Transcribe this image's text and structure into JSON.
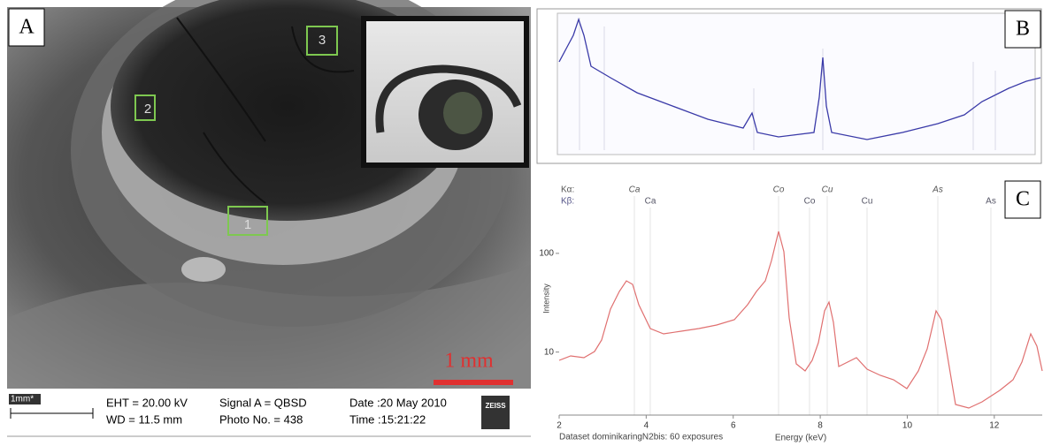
{
  "panel_a": {
    "label": "A",
    "regions": [
      "1",
      "2",
      "3"
    ],
    "scale_bar": "1 mm",
    "info": {
      "scale": "1mm*",
      "eht": "EHT = 20.00 kV",
      "wd": "WD = 11.5 mm",
      "signal": "Signal A = QBSD",
      "photo": "Photo No. = 438",
      "date": "Date :20 May 2010",
      "time": "Time :15:21:22",
      "logo": "ZEISS"
    }
  },
  "panel_b": {
    "label": "B"
  },
  "panel_c": {
    "label": "C",
    "line_key": [
      "Kα:",
      "Kβ:"
    ],
    "peaks_alpha": [
      "Ca",
      "Co",
      "Cu",
      "As"
    ],
    "peaks_beta": [
      "Ca",
      "Co",
      "Cu",
      "As"
    ],
    "y_label": "Intensity",
    "x_label": "Energy (keV)",
    "footer": "Dataset dominikaringN2bis: 60 exposures",
    "xlim": [
      2,
      13
    ],
    "xticks": [
      2,
      4,
      6,
      8,
      10,
      12
    ],
    "ylim": [
      2.3,
      540
    ],
    "yticks": [
      10,
      100
    ],
    "log_y": true
  }
}
